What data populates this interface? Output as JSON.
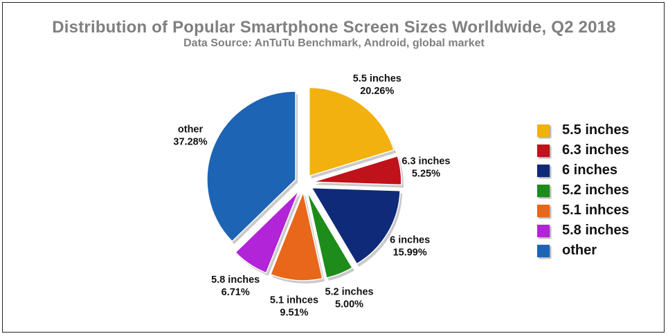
{
  "chart_data": {
    "type": "pie",
    "title": "Distribution of Popular Smartphone Screen Sizes Worlldwide, Q2 2018",
    "subtitle": "Data Source: AnTuTu Benchmark, Android, global market",
    "legend_position": "right",
    "slices": [
      {
        "label": "5.5 inches",
        "value": 20.26,
        "value_text": "20.26%",
        "color": "#f2b10f"
      },
      {
        "label": "6.3 inches",
        "value": 5.25,
        "value_text": "5.25%",
        "color": "#c0121a"
      },
      {
        "label": "6 inches",
        "value": 15.99,
        "value_text": "15.99%",
        "color": "#0e2a78"
      },
      {
        "label": "5.2 inches",
        "value": 5.0,
        "value_text": "5.00%",
        "color": "#1d8c1b"
      },
      {
        "label": "5.1 inhces",
        "value": 9.51,
        "value_text": "9.51%",
        "color": "#e8671a"
      },
      {
        "label": "5.8 inches",
        "value": 6.71,
        "value_text": "6.71%",
        "color": "#b224d8"
      },
      {
        "label": "other",
        "value": 37.28,
        "value_text": "37.28%",
        "color": "#1e64b4"
      }
    ]
  }
}
